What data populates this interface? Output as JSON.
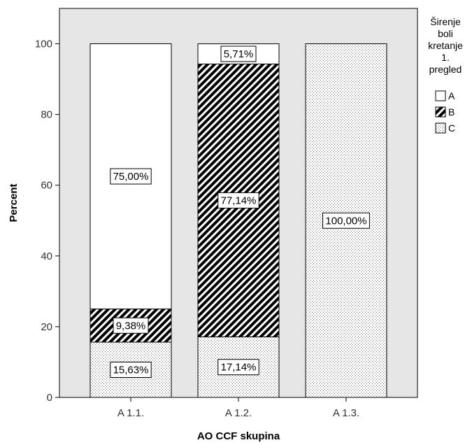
{
  "chart_data": {
    "type": "bar",
    "stacked": true,
    "categories": [
      "A 1.1.",
      "A 1.2.",
      "A 1.3."
    ],
    "series": [
      {
        "name": "C",
        "values": [
          15.63,
          17.14,
          100.0
        ],
        "labels": [
          "15,63%",
          "17,14%",
          "100,00%"
        ],
        "pattern": "dots"
      },
      {
        "name": "B",
        "values": [
          9.38,
          77.14,
          0
        ],
        "labels": [
          "9,38%",
          "77,14%",
          ""
        ],
        "pattern": "hatch"
      },
      {
        "name": "A",
        "values": [
          75.0,
          5.71,
          0
        ],
        "labels": [
          "75,00%",
          "5,71%",
          ""
        ],
        "pattern": "white"
      }
    ],
    "xlabel": "AO CCF skupina",
    "ylabel": "Percent",
    "ylim": [
      0,
      110
    ],
    "yticks": [
      "0",
      "20",
      "40",
      "60",
      "80",
      "100"
    ],
    "grid": false,
    "legend": {
      "title": [
        "Širenje",
        "boli",
        "kretanje",
        "1.",
        "pregled"
      ],
      "entries": [
        "A",
        "B",
        "C"
      ],
      "placement": "right"
    },
    "colors": {
      "plot_background": "#e6e6e6",
      "bar_fill": "#ffffff",
      "bar_stroke": "#000000",
      "axis": "#000000"
    }
  }
}
